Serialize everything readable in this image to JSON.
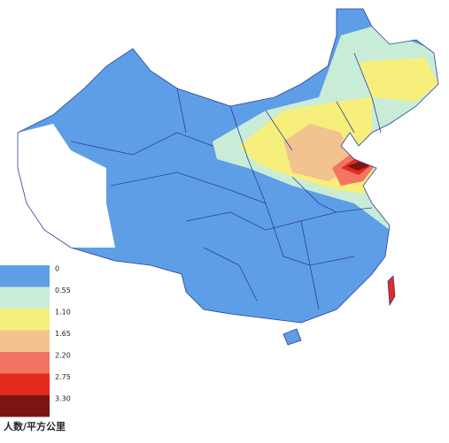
{
  "legend": {
    "title": "人数/平方公里",
    "items": [
      {
        "label": "0",
        "color": "#5e9ee6"
      },
      {
        "label": "0.55",
        "color": "#c9ecd6"
      },
      {
        "label": "1.10",
        "color": "#f6ef7c"
      },
      {
        "label": "1.65",
        "color": "#f2c28f"
      },
      {
        "label": "2.20",
        "color": "#f27462"
      },
      {
        "label": "2.75",
        "color": "#e62a1e"
      },
      {
        "label": "3.30",
        "color": "#7a1512"
      }
    ]
  }
}
